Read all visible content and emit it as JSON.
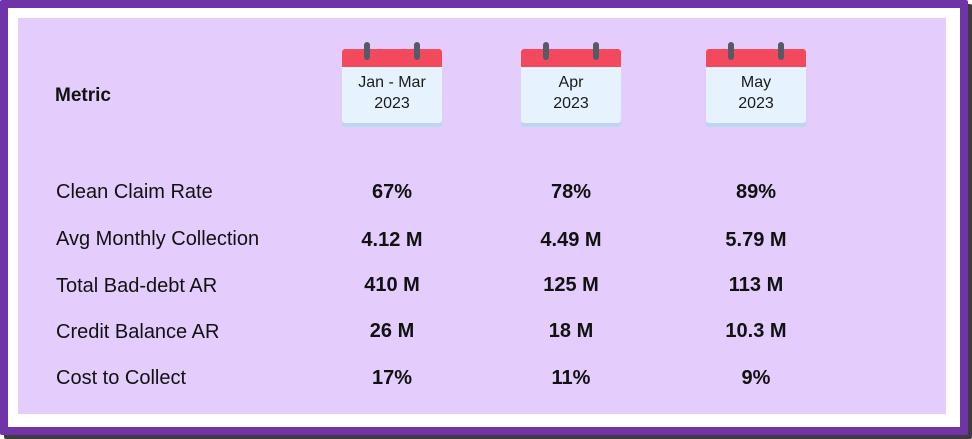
{
  "table": {
    "metric_header": "Metric",
    "periods": [
      {
        "line1": "Jan - Mar",
        "line2": "2023"
      },
      {
        "line1": "Apr",
        "line2": "2023"
      },
      {
        "line1": "May",
        "line2": "2023"
      }
    ],
    "rows": [
      {
        "label": "Clean Claim Rate",
        "values": [
          "67%",
          "78%",
          "89%"
        ]
      },
      {
        "label": "Avg Monthly Collection",
        "values": [
          "4.12 M",
          "4.49 M",
          "5.79 M"
        ]
      },
      {
        "label": "Total Bad-debt AR",
        "values": [
          "410 M",
          "125 M",
          "113 M"
        ]
      },
      {
        "label": "Credit Balance AR",
        "values": [
          "26 M",
          "18 M",
          "10.3 M"
        ]
      },
      {
        "label": "Cost to Collect",
        "values": [
          "17%",
          "11%",
          "9%"
        ]
      }
    ]
  },
  "colors": {
    "frame": "#7033a8",
    "panel": "#e4ccfc",
    "calendar_top": "#f24a5c",
    "calendar_body": "#e6f2fd"
  },
  "icons": {
    "period_icon": "calendar-icon"
  }
}
